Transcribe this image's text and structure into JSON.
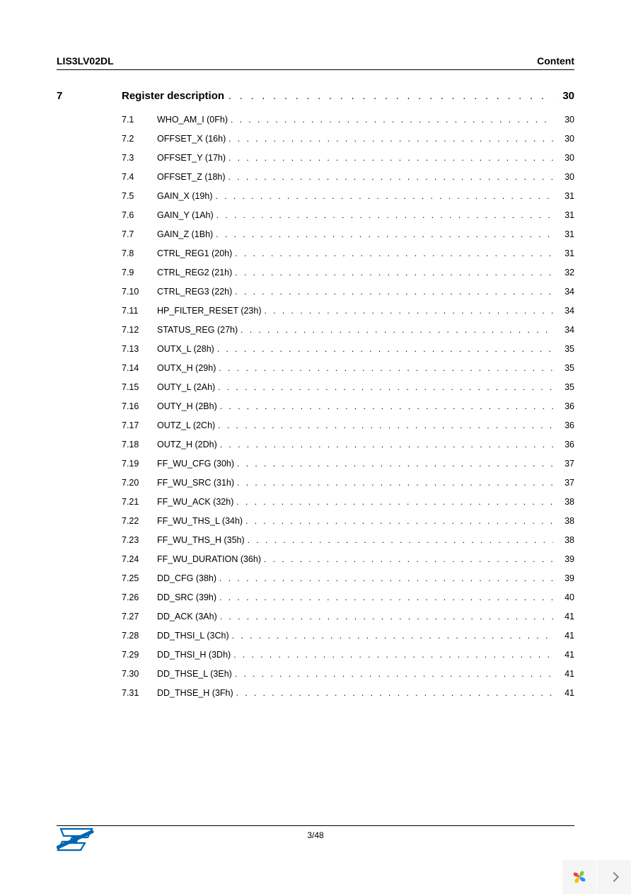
{
  "header": {
    "doc_id": "LIS3LV02DL",
    "right_label": "Content"
  },
  "section": {
    "number": "7",
    "title": "Register description",
    "page": "30"
  },
  "toc": [
    {
      "num": "7.1",
      "title": "WHO_AM_I (0Fh)",
      "page": "30"
    },
    {
      "num": "7.2",
      "title": "OFFSET_X (16h)",
      "page": "30"
    },
    {
      "num": "7.3",
      "title": "OFFSET_Y (17h)",
      "page": "30"
    },
    {
      "num": "7.4",
      "title": "OFFSET_Z (18h)",
      "page": "30"
    },
    {
      "num": "7.5",
      "title": "GAIN_X (19h)",
      "page": "31"
    },
    {
      "num": "7.6",
      "title": "GAIN_Y (1Ah)",
      "page": "31"
    },
    {
      "num": "7.7",
      "title": "GAIN_Z (1Bh)",
      "page": "31"
    },
    {
      "num": "7.8",
      "title": "CTRL_REG1 (20h)",
      "page": "31"
    },
    {
      "num": "7.9",
      "title": "CTRL_REG2 (21h)",
      "page": "32"
    },
    {
      "num": "7.10",
      "title": "CTRL_REG3 (22h)",
      "page": "34"
    },
    {
      "num": "7.11",
      "title": "HP_FILTER_RESET (23h)",
      "page": "34"
    },
    {
      "num": "7.12",
      "title": "STATUS_REG (27h)",
      "page": "34"
    },
    {
      "num": "7.13",
      "title": "OUTX_L (28h)",
      "page": "35"
    },
    {
      "num": "7.14",
      "title": "OUTX_H (29h)",
      "page": "35"
    },
    {
      "num": "7.15",
      "title": "OUTY_L (2Ah)",
      "page": "35"
    },
    {
      "num": "7.16",
      "title": "OUTY_H (2Bh)",
      "page": "36"
    },
    {
      "num": "7.17",
      "title": "OUTZ_L (2Ch)",
      "page": "36"
    },
    {
      "num": "7.18",
      "title": "OUTZ_H (2Dh)",
      "page": "36"
    },
    {
      "num": "7.19",
      "title": "FF_WU_CFG (30h)",
      "page": "37"
    },
    {
      "num": "7.20",
      "title": "FF_WU_SRC (31h)",
      "page": "37"
    },
    {
      "num": "7.21",
      "title": "FF_WU_ACK (32h)",
      "page": "38"
    },
    {
      "num": "7.22",
      "title": "FF_WU_THS_L (34h)",
      "page": "38"
    },
    {
      "num": "7.23",
      "title": "FF_WU_THS_H (35h)",
      "page": "38"
    },
    {
      "num": "7.24",
      "title": "FF_WU_DURATION (36h)",
      "page": "39"
    },
    {
      "num": "7.25",
      "title": "DD_CFG (38h)",
      "page": "39"
    },
    {
      "num": "7.26",
      "title": "DD_SRC (39h)",
      "page": "40"
    },
    {
      "num": "7.27",
      "title": "DD_ACK (3Ah)",
      "page": "41"
    },
    {
      "num": "7.28",
      "title": "DD_THSI_L (3Ch)",
      "page": "41"
    },
    {
      "num": "7.29",
      "title": "DD_THSI_H (3Dh)",
      "page": "41"
    },
    {
      "num": "7.30",
      "title": "DD_THSE_L (3Eh)",
      "page": "41"
    },
    {
      "num": "7.31",
      "title": "DD_THSE_H (3Fh)",
      "page": "41"
    }
  ],
  "footer": {
    "page_indicator": "3/48"
  },
  "logo_colors": {
    "blue": "#0066b3",
    "white": "#ffffff"
  },
  "widget_colors": {
    "petal1": "#8bc34a",
    "petal2": "#2196f3",
    "petal3": "#ffc107",
    "petal4": "#f44336"
  }
}
